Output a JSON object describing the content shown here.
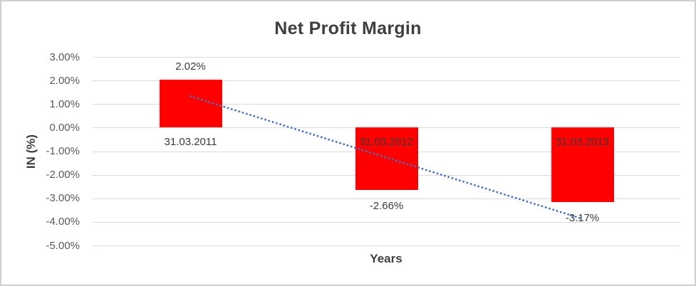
{
  "chart_data": {
    "type": "bar",
    "title": "Net Profit Margin",
    "xlabel": "Years",
    "ylabel": "IN (%)",
    "categories": [
      "31.03.2011",
      "31.03.2012",
      "31.03.2013"
    ],
    "values": [
      2.02,
      -2.66,
      -3.17
    ],
    "data_labels": [
      "2.02%",
      "-2.66%",
      "-3.17%"
    ],
    "yticks": [
      3,
      2,
      1,
      0,
      -1,
      -2,
      -3,
      -4,
      -5
    ],
    "ytick_labels": [
      "3.00%",
      "2.00%",
      "1.00%",
      "0.00%",
      "-1.00%",
      "-2.00%",
      "-3.00%",
      "-4.00%",
      "-5.00%"
    ],
    "ylim": [
      -5,
      3
    ],
    "grid": true,
    "legend": "none",
    "bar_color": "#ff0000",
    "gridline_color": "#d9d9d9",
    "title_color": "#3f3f3f",
    "tick_color": "#595959",
    "label_color": "#3b3b3b",
    "trendline": {
      "style": "dotted",
      "color": "#4472c4",
      "y_start": 1.33,
      "y_end": -3.87
    }
  }
}
